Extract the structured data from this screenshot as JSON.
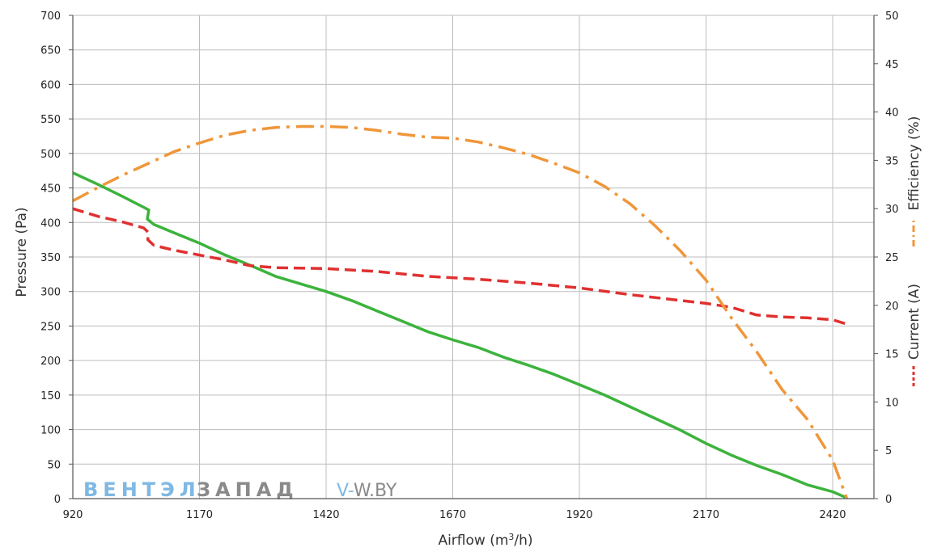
{
  "chart_data": {
    "type": "line",
    "xlabel_main": "Airflow (m",
    "xlabel_sup": "3",
    "xlabel_end": "/h)",
    "ylabel_left": "Pressure (Pa)",
    "ylabel_right_efficiency": "Efficiency (%)",
    "ylabel_right_current": "Current (A)",
    "x_ticks": [
      920,
      1170,
      1420,
      1670,
      1920,
      2170,
      2420
    ],
    "y_left_ticks": [
      0,
      50,
      100,
      150,
      200,
      250,
      300,
      350,
      400,
      450,
      500,
      550,
      600,
      650,
      700
    ],
    "y_right_ticks": [
      0,
      5,
      10,
      15,
      20,
      25,
      30,
      35,
      40,
      45,
      50
    ],
    "xlim": [
      920,
      2500
    ],
    "ylim_left": [
      0,
      700
    ],
    "ylim_right": [
      0,
      50
    ],
    "grid": true,
    "series": [
      {
        "axis": "left",
        "color": "#3cb33c",
        "style": "solid",
        "points": [
          [
            920,
            472
          ],
          [
            970,
            455
          ],
          [
            1020,
            437
          ],
          [
            1060,
            422
          ],
          [
            1070,
            418
          ],
          [
            1067,
            405
          ],
          [
            1080,
            397
          ],
          [
            1120,
            385
          ],
          [
            1170,
            370
          ],
          [
            1220,
            353
          ],
          [
            1270,
            338
          ],
          [
            1320,
            322
          ],
          [
            1370,
            311
          ],
          [
            1420,
            300
          ],
          [
            1470,
            287
          ],
          [
            1520,
            272
          ],
          [
            1570,
            257
          ],
          [
            1620,
            242
          ],
          [
            1670,
            230
          ],
          [
            1720,
            219
          ],
          [
            1770,
            205
          ],
          [
            1820,
            193
          ],
          [
            1870,
            180
          ],
          [
            1920,
            165
          ],
          [
            1970,
            150
          ],
          [
            2020,
            133
          ],
          [
            2070,
            116
          ],
          [
            2120,
            99
          ],
          [
            2170,
            80
          ],
          [
            2220,
            63
          ],
          [
            2270,
            48
          ],
          [
            2320,
            35
          ],
          [
            2370,
            20
          ],
          [
            2420,
            10
          ],
          [
            2445,
            2
          ]
        ]
      },
      {
        "axis": "right",
        "color": "#e03030",
        "style": "dashed",
        "points": [
          [
            920,
            30.0
          ],
          [
            970,
            29.2
          ],
          [
            1020,
            28.6
          ],
          [
            1060,
            28.0
          ],
          [
            1070,
            27.5
          ],
          [
            1068,
            26.8
          ],
          [
            1080,
            26.2
          ],
          [
            1120,
            25.7
          ],
          [
            1170,
            25.2
          ],
          [
            1220,
            24.7
          ],
          [
            1270,
            24.1
          ],
          [
            1320,
            23.9
          ],
          [
            1420,
            23.8
          ],
          [
            1520,
            23.5
          ],
          [
            1620,
            23.0
          ],
          [
            1720,
            22.7
          ],
          [
            1820,
            22.3
          ],
          [
            1920,
            21.8
          ],
          [
            2020,
            21.1
          ],
          [
            2120,
            20.5
          ],
          [
            2170,
            20.2
          ],
          [
            2220,
            19.8
          ],
          [
            2270,
            19.0
          ],
          [
            2320,
            18.8
          ],
          [
            2370,
            18.7
          ],
          [
            2420,
            18.5
          ],
          [
            2445,
            18.1
          ]
        ]
      },
      {
        "axis": "right",
        "color": "#f0963a",
        "style": "dashdot",
        "points": [
          [
            920,
            30.8
          ],
          [
            970,
            32.2
          ],
          [
            1020,
            33.5
          ],
          [
            1070,
            34.7
          ],
          [
            1120,
            35.9
          ],
          [
            1170,
            36.8
          ],
          [
            1220,
            37.6
          ],
          [
            1270,
            38.1
          ],
          [
            1320,
            38.4
          ],
          [
            1370,
            38.5
          ],
          [
            1420,
            38.5
          ],
          [
            1470,
            38.4
          ],
          [
            1520,
            38.1
          ],
          [
            1570,
            37.7
          ],
          [
            1620,
            37.4
          ],
          [
            1670,
            37.3
          ],
          [
            1720,
            36.9
          ],
          [
            1770,
            36.3
          ],
          [
            1820,
            35.6
          ],
          [
            1870,
            34.7
          ],
          [
            1920,
            33.7
          ],
          [
            1970,
            32.3
          ],
          [
            2020,
            30.5
          ],
          [
            2070,
            28.2
          ],
          [
            2120,
            25.6
          ],
          [
            2170,
            22.6
          ],
          [
            2220,
            18.7
          ],
          [
            2270,
            15.2
          ],
          [
            2320,
            11.3
          ],
          [
            2370,
            8.2
          ],
          [
            2420,
            4.0
          ],
          [
            2448,
            0.0
          ]
        ]
      }
    ]
  },
  "watermark": {
    "brand_part1": "ВЕНТЭЛ",
    "brand_part2": "ЗАПАД",
    "site_prefix": "V-",
    "site_rest": "W.BY"
  }
}
